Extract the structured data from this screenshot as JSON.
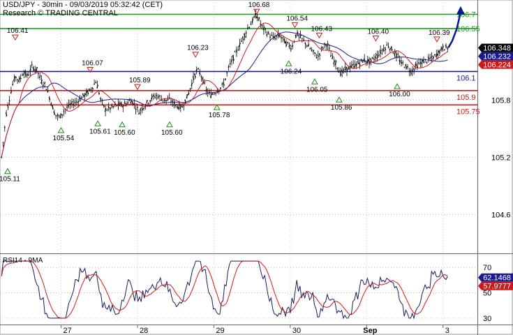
{
  "header": {
    "title": "USD/JPY - 30min - 09/03/2019 05:32:42 (CET)",
    "subtitle": "Research © TRADING CENTRAL"
  },
  "chart_data": [
    {
      "type": "candlestick",
      "panel": "price",
      "yaxis": {
        "range": [
          104.2,
          106.85
        ],
        "ticks": [
          104.6,
          105.2,
          105.8
        ]
      },
      "x_ticks": [
        {
          "label": "27",
          "at": 2
        },
        {
          "label": "28",
          "at": 3
        },
        {
          "label": "29",
          "at": 4
        },
        {
          "label": "30",
          "at": 5
        },
        {
          "label": "Sep",
          "at": 6,
          "bold": true
        },
        {
          "label": "3",
          "at": 7
        }
      ],
      "x_range": [
        1.2,
        7.45
      ],
      "price_series": [
        [
          1.22,
          105.2
        ],
        [
          1.28,
          105.65
        ],
        [
          1.36,
          105.95
        ],
        [
          1.4,
          106.05
        ],
        [
          1.46,
          106.0
        ],
        [
          1.5,
          106.1
        ],
        [
          1.56,
          106.05
        ],
        [
          1.62,
          106.15
        ],
        [
          1.68,
          106.12
        ],
        [
          1.74,
          106.0
        ],
        [
          1.8,
          105.95
        ],
        [
          1.86,
          105.8
        ],
        [
          1.92,
          105.65
        ],
        [
          1.98,
          105.62
        ],
        [
          2.05,
          105.7
        ],
        [
          2.12,
          105.75
        ],
        [
          2.2,
          105.78
        ],
        [
          2.3,
          105.85
        ],
        [
          2.38,
          105.9
        ],
        [
          2.46,
          106.0
        ],
        [
          2.52,
          105.8
        ],
        [
          2.58,
          105.7
        ],
        [
          2.66,
          105.72
        ],
        [
          2.74,
          105.75
        ],
        [
          2.82,
          105.75
        ],
        [
          2.92,
          105.8
        ],
        [
          3.02,
          105.68
        ],
        [
          3.1,
          105.75
        ],
        [
          3.18,
          105.82
        ],
        [
          3.26,
          105.85
        ],
        [
          3.34,
          105.8
        ],
        [
          3.42,
          105.8
        ],
        [
          3.5,
          105.75
        ],
        [
          3.58,
          105.72
        ],
        [
          3.66,
          105.85
        ],
        [
          3.72,
          106.0
        ],
        [
          3.78,
          106.12
        ],
        [
          3.84,
          106.05
        ],
        [
          3.9,
          105.9
        ],
        [
          3.96,
          105.85
        ],
        [
          4.04,
          105.9
        ],
        [
          4.12,
          105.95
        ],
        [
          4.2,
          106.15
        ],
        [
          4.26,
          106.25
        ],
        [
          4.32,
          106.35
        ],
        [
          4.38,
          106.45
        ],
        [
          4.44,
          106.55
        ],
        [
          4.5,
          106.62
        ],
        [
          4.56,
          106.7
        ],
        [
          4.62,
          106.58
        ],
        [
          4.7,
          106.5
        ],
        [
          4.78,
          106.45
        ],
        [
          4.86,
          106.48
        ],
        [
          4.94,
          106.4
        ],
        [
          5.02,
          106.35
        ],
        [
          5.08,
          106.5
        ],
        [
          5.14,
          106.45
        ],
        [
          5.22,
          106.38
        ],
        [
          5.3,
          106.3
        ],
        [
          5.36,
          106.25
        ],
        [
          5.42,
          106.35
        ],
        [
          5.48,
          106.4
        ],
        [
          5.54,
          106.25
        ],
        [
          5.6,
          106.18
        ],
        [
          5.66,
          106.08
        ],
        [
          5.72,
          106.12
        ],
        [
          5.8,
          106.15
        ],
        [
          5.88,
          106.18
        ],
        [
          5.96,
          106.22
        ],
        [
          6.04,
          106.2
        ],
        [
          6.12,
          106.25
        ],
        [
          6.2,
          106.32
        ],
        [
          6.28,
          106.38
        ],
        [
          6.36,
          106.3
        ],
        [
          6.44,
          106.2
        ],
        [
          6.52,
          106.15
        ],
        [
          6.58,
          106.1
        ],
        [
          6.64,
          106.15
        ],
        [
          6.72,
          106.2
        ],
        [
          6.8,
          106.22
        ],
        [
          6.88,
          106.25
        ],
        [
          6.94,
          106.3
        ],
        [
          7.0,
          106.35
        ],
        [
          7.06,
          106.35
        ]
      ],
      "forecast_arrow": [
        [
          7.07,
          106.35
        ],
        [
          7.12,
          106.42
        ],
        [
          7.18,
          106.55
        ],
        [
          7.23,
          106.72
        ]
      ],
      "horizontal_levels": [
        {
          "value": 106.7,
          "label": "106.7",
          "color": "#1a9a1a"
        },
        {
          "value": 106.55,
          "label": "106.55",
          "color": "#1a9a1a"
        },
        {
          "value": 106.1,
          "label": "106.1",
          "color": "#1a1a8c"
        },
        {
          "value": 105.9,
          "label": "105.9",
          "color": "#cc1a1a"
        },
        {
          "value": 105.75,
          "label": "105.75",
          "color": "#cc1a1a"
        }
      ],
      "last_price_badges": [
        {
          "value": "106.348",
          "color": "#000000"
        },
        {
          "value": "106.232",
          "color": "#1a1a8c"
        },
        {
          "value": "106.224",
          "color": "#cc1a1a"
        }
      ],
      "swing_annotations": [
        {
          "x": 1.3,
          "y": 105.11,
          "label": "105.11",
          "dir": "low"
        },
        {
          "x": 1.4,
          "y": 106.41,
          "label": "106.41",
          "dir": "high"
        },
        {
          "x": 2.0,
          "y": 105.54,
          "label": "105.54",
          "dir": "low"
        },
        {
          "x": 2.38,
          "y": 106.07,
          "label": "106.07",
          "dir": "high"
        },
        {
          "x": 2.48,
          "y": 105.61,
          "label": "105.61",
          "dir": "low"
        },
        {
          "x": 2.8,
          "y": 105.6,
          "label": "105.60",
          "dir": "low"
        },
        {
          "x": 3.0,
          "y": 105.89,
          "label": "105.89",
          "dir": "high"
        },
        {
          "x": 3.42,
          "y": 105.6,
          "label": "105.60",
          "dir": "low"
        },
        {
          "x": 3.76,
          "y": 106.23,
          "label": "106.23",
          "dir": "high"
        },
        {
          "x": 4.04,
          "y": 105.78,
          "label": "105.78",
          "dir": "low"
        },
        {
          "x": 4.56,
          "y": 106.68,
          "label": "106.68",
          "dir": "high"
        },
        {
          "x": 5.06,
          "y": 106.54,
          "label": "106.54",
          "dir": "high"
        },
        {
          "x": 4.98,
          "y": 106.24,
          "label": "106.24",
          "dir": "low"
        },
        {
          "x": 5.38,
          "y": 106.43,
          "label": "106.43",
          "dir": "high"
        },
        {
          "x": 5.32,
          "y": 106.05,
          "label": "106.05",
          "dir": "low"
        },
        {
          "x": 5.64,
          "y": 105.86,
          "label": "105.86",
          "dir": "low"
        },
        {
          "x": 6.12,
          "y": 106.4,
          "label": "106.40",
          "dir": "high"
        },
        {
          "x": 6.4,
          "y": 106.0,
          "label": "106.00",
          "dir": "low"
        },
        {
          "x": 6.92,
          "y": 106.39,
          "label": "106.39",
          "dir": "high"
        }
      ]
    },
    {
      "type": "line",
      "panel": "indicator",
      "title": "RSI14 - 9MA",
      "yaxis": {
        "range": [
          25,
          80
        ],
        "ticks": [
          30,
          50,
          70
        ]
      },
      "last_value_badges": [
        {
          "value": "62.1468",
          "color": "#1a1a8c"
        },
        {
          "value": "57.9777",
          "color": "#cc1a1a"
        }
      ]
    }
  ]
}
